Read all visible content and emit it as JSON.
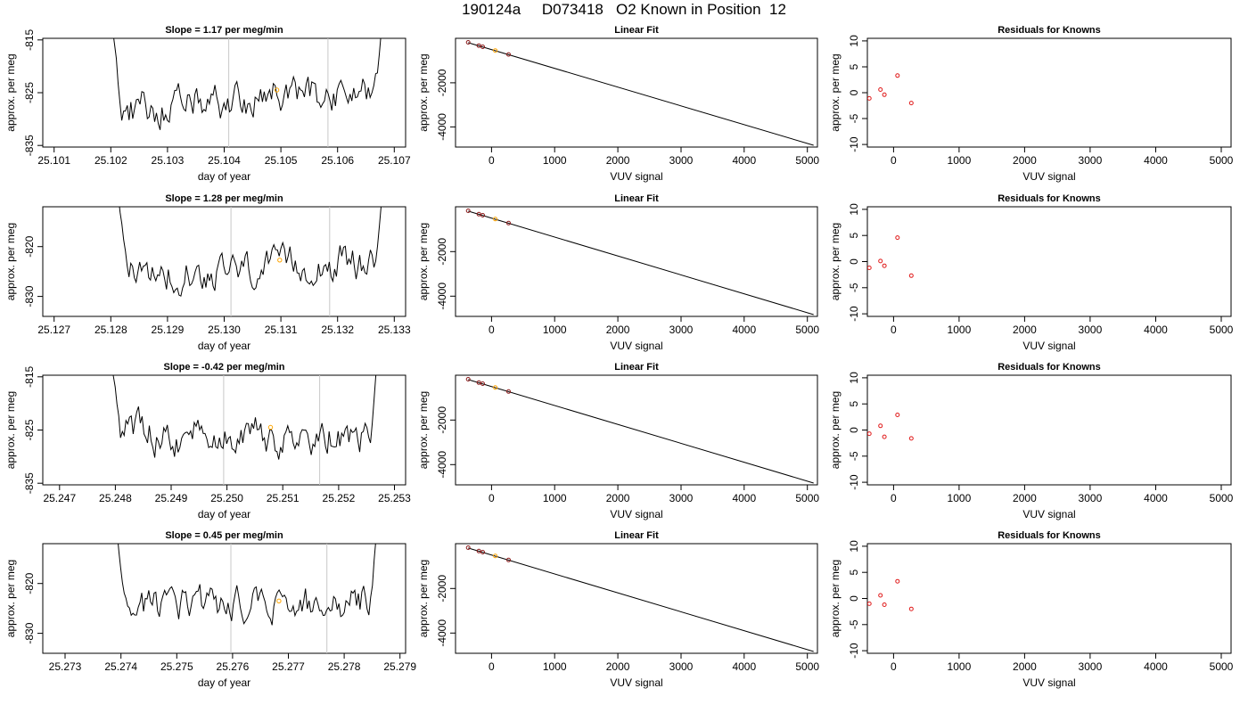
{
  "page_title": "190124a     D073418   O2 Known in Position  12",
  "colors": {
    "axis": "#000000",
    "trace": "#000000",
    "marker": "#ffa500",
    "vline": "#c8c8c8",
    "known_pt": "#8b1a1a",
    "resid_pt": "#e01a1a"
  },
  "chart_data": [
    {
      "type": "line",
      "panel": "time-1",
      "title": "Slope =  1.17  per meg/min",
      "xlabel": "day of year",
      "ylabel": "approx. per meg",
      "xlim": [
        25.1008,
        25.1072
      ],
      "ylim": [
        -835.3,
        -814.7
      ],
      "xticks": [
        25.101,
        25.102,
        25.103,
        25.104,
        25.105,
        25.106,
        25.107
      ],
      "yticks": [
        -815,
        -825,
        -835
      ],
      "trace_x": [
        25.102,
        25.1068
      ],
      "vlines": [
        25.10408,
        25.10583
      ],
      "marker": [
        25.10493,
        -824.5
      ],
      "xtick_labels": [
        "25.101",
        "25.102",
        "25.103",
        "25.104",
        "25.105",
        "25.106",
        "25.107"
      ],
      "ytick_labels": [
        "-815",
        "-825",
        "-835"
      ]
    },
    {
      "type": "line",
      "panel": "time-2",
      "title": "Slope =  1.28  per meg/min",
      "xlabel": "day of year",
      "ylabel": "approx. per meg",
      "xlim": [
        25.1268,
        25.1332
      ],
      "ylim": [
        -834.0,
        -812.0
      ],
      "xticks": [
        25.127,
        25.128,
        25.129,
        25.13,
        25.131,
        25.132,
        25.133
      ],
      "yticks": [
        -820,
        -830
      ],
      "trace_x": [
        25.1281,
        25.1328
      ],
      "vlines": [
        25.13012,
        25.13186
      ],
      "marker": [
        25.13098,
        -822.7
      ],
      "xtick_labels": [
        "25.127",
        "25.128",
        "25.129",
        "25.130",
        "25.131",
        "25.132",
        "25.133"
      ],
      "ytick_labels": [
        "-820",
        "-830"
      ]
    },
    {
      "type": "line",
      "panel": "time-3",
      "title": "Slope =  -0.42  per meg/min",
      "xlabel": "day of year",
      "ylabel": "approx. per meg",
      "xlim": [
        25.2467,
        25.2532
      ],
      "ylim": [
        -835.3,
        -814.7
      ],
      "xticks": [
        25.247,
        25.248,
        25.249,
        25.25,
        25.251,
        25.252,
        25.253
      ],
      "yticks": [
        -815,
        -825,
        -835
      ],
      "trace_x": [
        25.2479,
        25.2527
      ],
      "vlines": [
        25.24994,
        25.25166
      ],
      "marker": [
        25.25078,
        -824.5
      ],
      "xtick_labels": [
        "25.247",
        "25.248",
        "25.249",
        "25.250",
        "25.251",
        "25.252",
        "25.253"
      ],
      "ytick_labels": [
        "-815",
        "-825",
        "-835"
      ]
    },
    {
      "type": "line",
      "panel": "time-4",
      "title": "Slope =  0.45  per meg/min",
      "xlabel": "day of year",
      "ylabel": "approx. per meg",
      "xlim": [
        25.2726,
        25.2791
      ],
      "ylim": [
        -834.0,
        -812.0
      ],
      "xticks": [
        25.273,
        25.274,
        25.275,
        25.276,
        25.277,
        25.278,
        25.279
      ],
      "yticks": [
        -820,
        -830
      ],
      "trace_x": [
        25.2739,
        25.2786
      ],
      "vlines": [
        25.27597,
        25.27769
      ],
      "marker": [
        25.27683,
        -823.5
      ],
      "xtick_labels": [
        "25.273",
        "25.274",
        "25.275",
        "25.276",
        "25.277",
        "25.278",
        "25.279"
      ],
      "ytick_labels": [
        "-820",
        "-830"
      ]
    },
    {
      "type": "scatter",
      "panel": "fit-1",
      "title": "Linear Fit",
      "xlabel": "VUV signal",
      "ylabel": "approx. per meg",
      "xlim": [
        -570,
        5160
      ],
      "ylim": [
        -4910,
        12
      ],
      "xticks": [
        0,
        1000,
        2000,
        3000,
        4000,
        5000
      ],
      "yticks": [
        -2000,
        -4000
      ],
      "line": [
        [
          -370,
          -185
        ],
        [
          5100,
          -4830
        ]
      ],
      "points": [
        [
          -370,
          -170
        ],
        [
          -200,
          -320
        ],
        [
          -140,
          -370
        ],
        [
          60,
          -540
        ],
        [
          270,
          -720
        ]
      ],
      "highlight_index": 3,
      "xtick_labels": [
        "0",
        "1000",
        "2000",
        "3000",
        "4000",
        "5000"
      ],
      "ytick_labels": [
        "-2000",
        "-4000"
      ]
    },
    {
      "type": "scatter",
      "panel": "fit-2",
      "title": "Linear Fit",
      "xlabel": "VUV signal",
      "ylabel": "approx. per meg",
      "xlim": [
        -570,
        5160
      ],
      "ylim": [
        -4910,
        12
      ],
      "xticks": [
        0,
        1000,
        2000,
        3000,
        4000,
        5000
      ],
      "yticks": [
        -2000,
        -4000
      ],
      "line": [
        [
          -370,
          -185
        ],
        [
          5100,
          -4830
        ]
      ],
      "points": [
        [
          -370,
          -170
        ],
        [
          -200,
          -320
        ],
        [
          -140,
          -370
        ],
        [
          60,
          -540
        ],
        [
          270,
          -720
        ]
      ],
      "highlight_index": 3,
      "xtick_labels": [
        "0",
        "1000",
        "2000",
        "3000",
        "4000",
        "5000"
      ],
      "ytick_labels": [
        "-2000",
        "-4000"
      ]
    },
    {
      "type": "scatter",
      "panel": "fit-3",
      "title": "Linear Fit",
      "xlabel": "VUV signal",
      "ylabel": "approx. per meg",
      "xlim": [
        -570,
        5160
      ],
      "ylim": [
        -4910,
        12
      ],
      "xticks": [
        0,
        1000,
        2000,
        3000,
        4000,
        5000
      ],
      "yticks": [
        -2000,
        -4000
      ],
      "line": [
        [
          -370,
          -185
        ],
        [
          5100,
          -4830
        ]
      ],
      "points": [
        [
          -370,
          -170
        ],
        [
          -200,
          -320
        ],
        [
          -140,
          -370
        ],
        [
          60,
          -540
        ],
        [
          270,
          -720
        ]
      ],
      "highlight_index": 3,
      "xtick_labels": [
        "0",
        "1000",
        "2000",
        "3000",
        "4000",
        "5000"
      ],
      "ytick_labels": [
        "-2000",
        "-4000"
      ]
    },
    {
      "type": "scatter",
      "panel": "fit-4",
      "title": "Linear Fit",
      "xlabel": "VUV signal",
      "ylabel": "approx. per meg",
      "xlim": [
        -570,
        5160
      ],
      "ylim": [
        -4910,
        12
      ],
      "xticks": [
        0,
        1000,
        2000,
        3000,
        4000,
        5000
      ],
      "yticks": [
        -2000,
        -4000
      ],
      "line": [
        [
          -370,
          -185
        ],
        [
          5100,
          -4830
        ]
      ],
      "points": [
        [
          -370,
          -170
        ],
        [
          -200,
          -320
        ],
        [
          -140,
          -370
        ],
        [
          60,
          -540
        ],
        [
          270,
          -720
        ]
      ],
      "highlight_index": 3,
      "xtick_labels": [
        "0",
        "1000",
        "2000",
        "3000",
        "4000",
        "5000"
      ],
      "ytick_labels": [
        "-2000",
        "-4000"
      ]
    },
    {
      "type": "scatter",
      "panel": "resid-1",
      "title": "Residuals for Knowns",
      "xlabel": "VUV signal",
      "ylabel": "approx. per meg",
      "xlim": [
        -400,
        5150
      ],
      "ylim": [
        -10.5,
        10.5
      ],
      "xticks": [
        0,
        1000,
        2000,
        3000,
        4000,
        5000
      ],
      "yticks": [
        10,
        5,
        0,
        -5,
        -10
      ],
      "points": [
        [
          -370,
          -1.1
        ],
        [
          -200,
          0.6
        ],
        [
          -140,
          -0.4
        ],
        [
          60,
          3.3
        ],
        [
          270,
          -2.0
        ]
      ],
      "xtick_labels": [
        "0",
        "1000",
        "2000",
        "3000",
        "4000",
        "5000"
      ],
      "ytick_labels": [
        "10",
        "5",
        "0",
        "-5",
        "-10"
      ]
    },
    {
      "type": "scatter",
      "panel": "resid-2",
      "title": "Residuals for Knowns",
      "xlabel": "VUV signal",
      "ylabel": "approx. per meg",
      "xlim": [
        -400,
        5150
      ],
      "ylim": [
        -10.5,
        10.5
      ],
      "xticks": [
        0,
        1000,
        2000,
        3000,
        4000,
        5000
      ],
      "yticks": [
        10,
        5,
        0,
        -5,
        -10
      ],
      "points": [
        [
          -370,
          -1.2
        ],
        [
          -200,
          0.1
        ],
        [
          -140,
          -0.8
        ],
        [
          60,
          4.6
        ],
        [
          270,
          -2.7
        ]
      ],
      "xtick_labels": [
        "0",
        "1000",
        "2000",
        "3000",
        "4000",
        "5000"
      ],
      "ytick_labels": [
        "10",
        "5",
        "0",
        "-5",
        "-10"
      ]
    },
    {
      "type": "scatter",
      "panel": "resid-3",
      "title": "Residuals for Knowns",
      "xlabel": "VUV signal",
      "ylabel": "approx. per meg",
      "xlim": [
        -400,
        5150
      ],
      "ylim": [
        -10.5,
        10.5
      ],
      "xticks": [
        0,
        1000,
        2000,
        3000,
        4000,
        5000
      ],
      "yticks": [
        10,
        5,
        0,
        -5,
        -10
      ],
      "points": [
        [
          -370,
          -0.7
        ],
        [
          -200,
          0.8
        ],
        [
          -140,
          -1.3
        ],
        [
          60,
          2.9
        ],
        [
          270,
          -1.6
        ]
      ],
      "xtick_labels": [
        "0",
        "1000",
        "2000",
        "3000",
        "4000",
        "5000"
      ],
      "ytick_labels": [
        "10",
        "5",
        "0",
        "-5",
        "-10"
      ]
    },
    {
      "type": "scatter",
      "panel": "resid-4",
      "title": "Residuals for Knowns",
      "xlabel": "VUV signal",
      "ylabel": "approx. per meg",
      "xlim": [
        -400,
        5150
      ],
      "ylim": [
        -10.5,
        10.5
      ],
      "xticks": [
        0,
        1000,
        2000,
        3000,
        4000,
        5000
      ],
      "yticks": [
        10,
        5,
        0,
        -5,
        -10
      ],
      "points": [
        [
          -370,
          -1.0
        ],
        [
          -200,
          0.6
        ],
        [
          -140,
          -1.2
        ],
        [
          60,
          3.3
        ],
        [
          270,
          -2.0
        ]
      ],
      "xtick_labels": [
        "0",
        "1000",
        "2000",
        "3000",
        "4000",
        "5000"
      ],
      "ytick_labels": [
        "10",
        "5",
        "0",
        "-5",
        "-10"
      ]
    }
  ]
}
